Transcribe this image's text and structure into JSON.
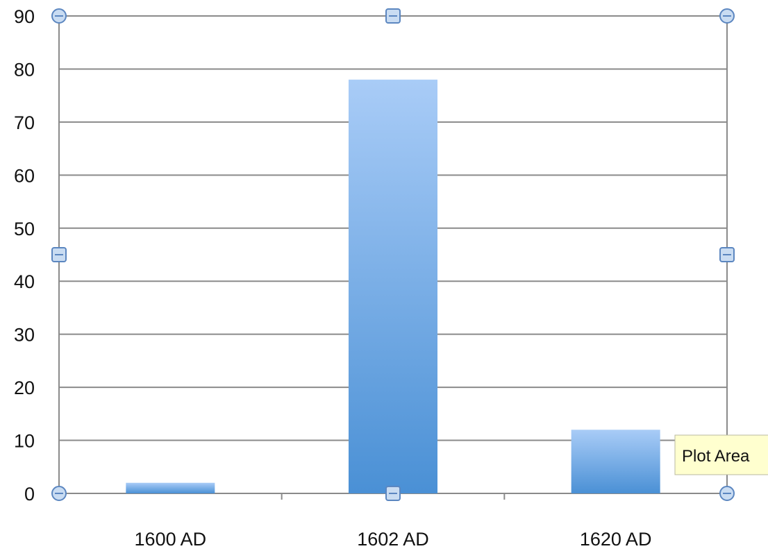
{
  "chart_data": {
    "type": "bar",
    "categories": [
      "1600 AD",
      "1602 AD",
      "1620 AD"
    ],
    "values": [
      2,
      78,
      12
    ],
    "ylim": [
      0,
      90
    ],
    "yticks": [
      0,
      10,
      20,
      30,
      40,
      50,
      60,
      70,
      80,
      90
    ],
    "grid": true,
    "legend": "none",
    "colors": {
      "bar_top": "#a9ccf7",
      "bar_bottom": "#4a90d5",
      "grid": "#8a8a8a",
      "handle_fill": "#c9dcf2",
      "handle_stroke": "#5b86c0"
    }
  },
  "tooltip": {
    "text": "Plot Area"
  }
}
